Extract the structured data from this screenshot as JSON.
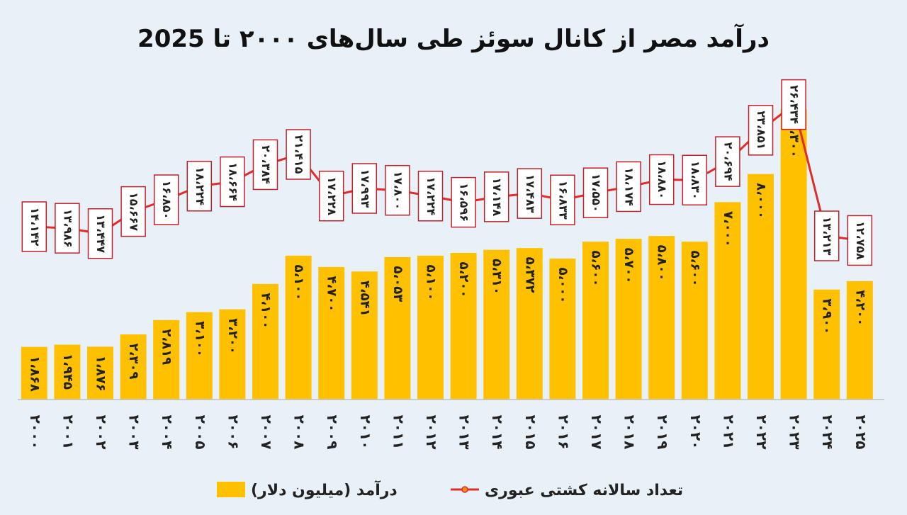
{
  "chart_data": {
    "type": "bar",
    "title": "درآمد مصر از کانال سوئز طی سال‌های ۲۰۰۰ تا  2025",
    "categories": [
      "۲۰۰۰",
      "۲۰۰۱",
      "۲۰۰۲",
      "۲۰۰۳",
      "۲۰۰۴",
      "۲۰۰۵",
      "۲۰۰۶",
      "۲۰۰۷",
      "۲۰۰۸",
      "۲۰۰۹",
      "۲۰۱۰",
      "۲۰۱۱",
      "۲۰۱۲",
      "۲۰۱۳",
      "۲۰۱۴",
      "۲۰۱۵",
      "۲۰۱۶",
      "۲۰۱۷",
      "۲۰۱۸",
      "۲۰۱۹",
      "۲۰۲۰",
      "۲۰۲۱",
      "۲۰۲۲",
      "۲۰۲۳",
      "۲۰۲۴",
      "۲۰۲۵"
    ],
    "series": [
      {
        "name": "درآمد (میلیون دلار)",
        "type": "bar",
        "color": "#ffc000",
        "values": [
          1868,
          1945,
          1876,
          2309,
          2819,
          3100,
          3200,
          4100,
          5100,
          4700,
          4541,
          5053,
          5100,
          5200,
          5310,
          5372,
          5000,
          5600,
          5700,
          5800,
          5600,
          7000,
          8000,
          10300,
          3900,
          4200
        ],
        "labels": [
          "۱،۸۶۸",
          "۱،۹۴۵",
          "۱،۸۷۶",
          "۲،۳۰۹",
          "۲،۸۱۹",
          "۳،۱۰۰",
          "۳،۲۰۰",
          "۴،۱۰۰",
          "۵،۱۰۰",
          "۴،۷۰۰",
          "۴،۵۴۱",
          "۵،۰۵۳",
          "۵،۱۰۰",
          "۵،۲۰۰",
          "۵،۳۱۰",
          "۵،۳۷۲",
          "۵،۰۰۰",
          "۵،۶۰۰",
          "۵،۷۰۰",
          "۵،۸۰۰",
          "۵،۶۰۰",
          "۷،۰۰۰",
          "۸،۰۰۰",
          "۱۰،۳۰۰",
          "۳،۹۰۰",
          "۴،۲۰۰"
        ]
      },
      {
        "name": "تعداد سالانه کشتی عبوری",
        "type": "line",
        "color": "#e32b2b",
        "values": [
          14142,
          13986,
          13447,
          15667,
          16850,
          18224,
          18664,
          20384,
          21415,
          17228,
          17993,
          17800,
          17224,
          16596,
          17148,
          17483,
          16833,
          17550,
          18174,
          18880,
          18830,
          20694,
          23851,
          26434,
          13213,
          12758
        ],
        "labels": [
          "۱۴،۱۴۲",
          "۱۳،۹۸۶",
          "۱۳،۴۴۷",
          "۱۵،۶۶۷",
          "۱۶،۸۵۰",
          "۱۸،۲۲۴",
          "۱۸،۶۶۴",
          "۲۰،۳۸۴",
          "۲۱،۴۱۵",
          "۱۷،۲۲۸",
          "۱۷،۹۹۳",
          "۱۷،۸۰۰",
          "۱۷،۲۲۴",
          "۱۶،۵۹۶",
          "۱۷،۱۴۸",
          "۱۷،۴۸۳",
          "۱۶،۸۳۳",
          "۱۷،۵۵۰",
          "۱۸،۱۷۴",
          "۱۸،۸۸۰",
          "۱۸،۸۳۰",
          "۲۰،۶۹۴",
          "۲۳،۸۵۱",
          "۲۶،۴۳۴",
          "۱۳،۲۱۳",
          "۱۲،۷۵۸"
        ]
      }
    ],
    "ylim": [
      0,
      10300
    ],
    "grid": false,
    "legend": "bottom-center"
  }
}
